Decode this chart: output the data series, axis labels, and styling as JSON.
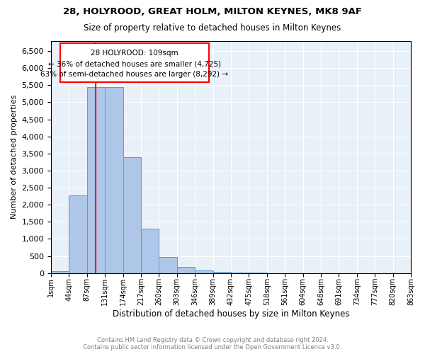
{
  "title1": "28, HOLYROOD, GREAT HOLM, MILTON KEYNES, MK8 9AF",
  "title2": "Size of property relative to detached houses in Milton Keynes",
  "xlabel": "Distribution of detached houses by size in Milton Keynes",
  "ylabel": "Number of detached properties",
  "bin_labels": [
    "1sqm",
    "44sqm",
    "87sqm",
    "131sqm",
    "174sqm",
    "217sqm",
    "260sqm",
    "303sqm",
    "346sqm",
    "389sqm",
    "432sqm",
    "475sqm",
    "518sqm",
    "561sqm",
    "604sqm",
    "648sqm",
    "691sqm",
    "734sqm",
    "777sqm",
    "820sqm",
    "863sqm"
  ],
  "bin_values": [
    50,
    2275,
    5450,
    5450,
    3400,
    1300,
    475,
    185,
    75,
    40,
    10,
    5,
    2,
    1,
    0,
    0,
    0,
    0,
    0,
    0
  ],
  "bar_color": "#aec6e8",
  "bar_edge_color": "#5b9bd5",
  "marker_label": "28 HOLYROOD: 109sqm",
  "annotation_line1": "← 36% of detached houses are smaller (4,725)",
  "annotation_line2": "63% of semi-detached houses are larger (8,292) →",
  "vline_color": "red",
  "vline_x": 2.5,
  "box_color": "red",
  "ylim": [
    0,
    6800
  ],
  "yticks": [
    0,
    500,
    1000,
    1500,
    2000,
    2500,
    3000,
    3500,
    4000,
    4500,
    5000,
    5500,
    6000,
    6500
  ],
  "background_color": "#e8f0f8",
  "footer_line1": "Contains HM Land Registry data © Crown copyright and database right 2024.",
  "footer_line2": "Contains public sector information licensed under the Open Government Licence v3.0."
}
